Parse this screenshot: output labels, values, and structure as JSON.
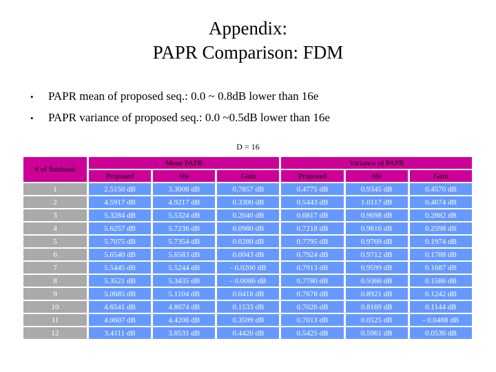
{
  "slide": {
    "title_line1": "Appendix:",
    "title_line2": "PAPR Comparison: FDM",
    "bullet_char": "•",
    "bullets": [
      "PAPR mean of proposed seq.: 0.0 ~ 0.8dB lower than 16e",
      "PAPR variance of proposed seq.: 0.0 ~0.5dB lower than 16e"
    ],
    "table_caption": "D = 16"
  },
  "table": {
    "corner_header": "# of Subband",
    "group_headers": [
      "Mean PAPR",
      "Variance of PAPR"
    ],
    "sub_headers": [
      "Proposed",
      "16e",
      "Gain",
      "Proposed",
      "16e",
      "Gain"
    ],
    "rows": [
      {
        "subband": "1",
        "cells": [
          "2.5150 dB",
          "3.3008 dB",
          "0.7857 dB",
          "0.4775 dB",
          "0.9345 dB",
          "0.4570 dB"
        ]
      },
      {
        "subband": "2",
        "cells": [
          "4.5917 dB",
          "4.9217 dB",
          "0.3300 dB",
          "0.5443 dB",
          "1.0117 dB",
          "0.4674 dB"
        ]
      },
      {
        "subband": "3",
        "cells": [
          "5.3284 dB",
          "5.5324 dB",
          "0.2040 dB",
          "0.6817 dB",
          "0.9698 dB",
          "0.2882 dB"
        ]
      },
      {
        "subband": "4",
        "cells": [
          "5.6257 dB",
          "5.7236 dB",
          "0.0980 dB",
          "0.7218 dB",
          "0.9816 dB",
          "0.2598 dB"
        ]
      },
      {
        "subband": "5",
        "cells": [
          "5.7075 dB",
          "5.7354 dB",
          "0.0280 dB",
          "0.7795 dB",
          "0.9769 dB",
          "0.1974 dB"
        ]
      },
      {
        "subband": "6",
        "cells": [
          "5.6540 dB",
          "5.6583 dB",
          "0.0043 dB",
          "0.7924 dB",
          "0.9712 dB",
          "0.1788 dB"
        ]
      },
      {
        "subband": "7",
        "cells": [
          "5.5445 dB",
          "5.5244 dB",
          "- 0.0200 dB",
          "0.7913 dB",
          "0.9599 dB",
          "0.1687 dB"
        ]
      },
      {
        "subband": "8",
        "cells": [
          "5.3521 dB",
          "5.3435 dB",
          "- 0.0086 dB",
          "0.7780 dB",
          "0.9366 dB",
          "0.1586 dB"
        ]
      },
      {
        "subband": "9",
        "cells": [
          "5.0685 dB",
          "5.1104 dB",
          "0.0418 dB",
          "0.7678 dB",
          "0.8921 dB",
          "0.1242 dB"
        ]
      },
      {
        "subband": "10",
        "cells": [
          "4.6541 dB",
          "4.8074 dB",
          "0.1533 dB",
          "0.7026 dB",
          "0.8169 dB",
          "0.1144 dB"
        ]
      },
      {
        "subband": "11",
        "cells": [
          "4.0607 dB",
          "4.4206 dB",
          "0.3599 dB",
          "0.7013 dB",
          "0.6525 dB",
          "- 0.0488 dB"
        ]
      },
      {
        "subband": "12",
        "cells": [
          "3.4111 dB",
          "3.8531 dB",
          "0.4420 dB",
          "0.5425 dB",
          "0.5961 dB",
          "0.0536 dB"
        ]
      }
    ]
  },
  "colors": {
    "header_bg": "#CC0099",
    "header_text": "#000000",
    "subband_bg": "#AAAAAA",
    "cell_bg": "#6699FF",
    "cell_text": "#FFFFFF",
    "background": "#FFFFFF"
  }
}
